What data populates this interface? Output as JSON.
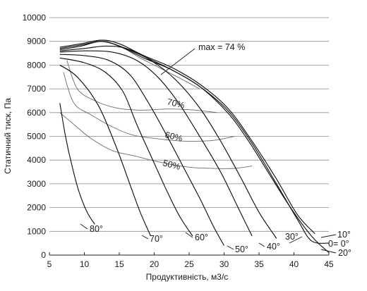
{
  "chart_data": {
    "type": "line",
    "xlabel": "Продуктивність, м3/с",
    "ylabel": "Статичний тиск, Па",
    "xlim": [
      5,
      45
    ],
    "ylim": [
      0,
      10000
    ],
    "x_ticks": [
      5,
      10,
      15,
      20,
      25,
      30,
      35,
      40,
      45
    ],
    "y_ticks": [
      0,
      1000,
      2000,
      3000,
      4000,
      5000,
      6000,
      7000,
      8000,
      9000,
      10000
    ],
    "grid": "horizontal",
    "series": [
      {
        "name": "80°",
        "x": [
          6.5,
          7.3,
          8.2,
          9.2,
          10.4,
          11.5
        ],
        "y": [
          6400,
          5000,
          3800,
          2700,
          1800,
          1300
        ]
      },
      {
        "name": "70°",
        "x": [
          6.5,
          9,
          12,
          14.5,
          16.5,
          18,
          19.5
        ],
        "y": [
          8000,
          7500,
          6300,
          4600,
          3000,
          1800,
          800
        ]
      },
      {
        "name": "60°",
        "x": [
          6.5,
          10,
          13,
          15.5,
          17.5,
          19.5,
          21.5,
          23.5,
          25.5
        ],
        "y": [
          8300,
          8100,
          7700,
          6900,
          5500,
          4200,
          2900,
          1700,
          800
        ]
      },
      {
        "name": "50°",
        "x": [
          6.5,
          10,
          13.5,
          16.5,
          19,
          21.5,
          24,
          26.5,
          28.5,
          30
        ],
        "y": [
          8450,
          8400,
          8200,
          7600,
          6500,
          5200,
          3800,
          2400,
          1200,
          400
        ]
      },
      {
        "name": "40°",
        "x": [
          6.5,
          10,
          14,
          17.5,
          20.5,
          23.5,
          26.5,
          29.5,
          32,
          34
        ],
        "y": [
          8550,
          8600,
          8550,
          8200,
          7500,
          6400,
          5000,
          3500,
          2000,
          800
        ]
      },
      {
        "name": "30°",
        "x": [
          6.5,
          10,
          13,
          16,
          19.5,
          23,
          26.5,
          29.5,
          32.5,
          35,
          37.5
        ],
        "y": [
          8600,
          8700,
          8800,
          8700,
          8200,
          7400,
          6200,
          4800,
          3200,
          1800,
          700
        ]
      },
      {
        "name": "20°",
        "x": [
          6.5,
          9.5,
          12.5,
          15.5,
          19,
          22.5,
          26.5,
          30.5,
          33.5,
          36.5,
          39.5,
          42.5,
          45
        ],
        "y": [
          8650,
          8800,
          9000,
          8750,
          8300,
          7800,
          7100,
          6000,
          4800,
          3400,
          2000,
          800,
          100
        ]
      },
      {
        "name": "10°",
        "x": [
          6.5,
          9.5,
          12.5,
          15,
          18.5,
          22.5,
          26.5,
          30.5,
          34,
          37.5,
          40.5,
          43
        ],
        "y": [
          8750,
          8900,
          9050,
          8900,
          8400,
          7900,
          7200,
          6200,
          4800,
          3200,
          1700,
          900
        ]
      },
      {
        "name": "0°",
        "x": [
          6.5,
          9.5,
          12.5,
          15,
          18.5,
          22.5,
          26.5,
          30.5,
          34,
          37.5,
          40.5,
          42.5,
          45
        ],
        "y": [
          8700,
          8850,
          9000,
          8800,
          8300,
          7800,
          7100,
          6100,
          4700,
          3000,
          1500,
          600,
          500
        ]
      }
    ],
    "efficiency_lines": [
      {
        "label": "max = 74 %",
        "x": [
          12.5,
          14,
          16,
          18,
          20,
          22,
          24,
          26.5
        ],
        "y": [
          9000,
          8900,
          8650,
          8300,
          8000,
          7700,
          7400,
          7000
        ]
      },
      {
        "label": "70%",
        "x": [
          7.5,
          9,
          11.5,
          14.5,
          18,
          22,
          26,
          29
        ],
        "y": [
          8200,
          7000,
          6500,
          6200,
          6100,
          6150,
          6100,
          6000
        ]
      },
      {
        "label": "60%",
        "x": [
          7,
          8.5,
          11,
          14,
          17,
          20.5,
          24,
          27,
          29,
          31.5
        ],
        "y": [
          7700,
          6400,
          5900,
          5400,
          5050,
          4900,
          4800,
          4800,
          4850,
          5000
        ]
      },
      {
        "label": "50%",
        "x": [
          6.5,
          8.5,
          11,
          14,
          17.5,
          21,
          25,
          28.5,
          31.5,
          34
        ],
        "y": [
          6000,
          5500,
          4900,
          4400,
          4150,
          3900,
          3700,
          3650,
          3650,
          3750
        ]
      }
    ],
    "annotations": [
      "max = 74 %",
      "70%",
      "60%",
      "50%",
      "80°",
      "70°",
      "60°",
      "50°",
      "40°",
      "30°",
      "20°",
      "10°",
      "0= 0°"
    ]
  }
}
